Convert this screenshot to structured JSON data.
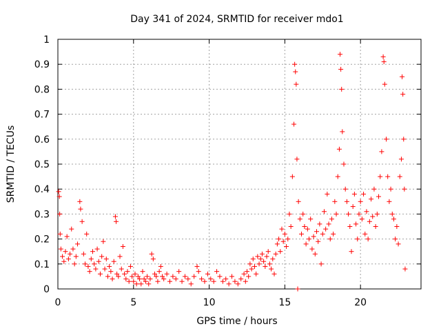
{
  "chart_data": {
    "type": "scatter",
    "title": "Day 341 of 2024, SRMTID for receiver mdo1",
    "xlabel": "GPS time / hours",
    "ylabel": "SRMTID / TECUs",
    "xlim": [
      0,
      24
    ],
    "ylim": [
      0,
      1
    ],
    "xticks": [
      0,
      5,
      10,
      15,
      20
    ],
    "xtick_labels": [
      "0",
      "5",
      "10",
      "15",
      "20"
    ],
    "yticks": [
      0,
      0.1,
      0.2,
      0.3,
      0.4,
      0.5,
      0.6,
      0.7,
      0.8,
      0.9,
      1
    ],
    "ytick_labels": [
      "0",
      "0.1",
      "0.2",
      "0.3",
      "0.4",
      "0.5",
      "0.6",
      "0.7",
      "0.8",
      "0.9",
      "1"
    ],
    "grid": true,
    "marker": "+",
    "color": "#ff0000",
    "series": [
      {
        "name": "SRMTID",
        "points": [
          [
            0.05,
            0.39
          ],
          [
            0.1,
            0.37
          ],
          [
            0.12,
            0.3
          ],
          [
            0.15,
            0.22
          ],
          [
            0.2,
            0.16
          ],
          [
            0.3,
            0.13
          ],
          [
            0.4,
            0.11
          ],
          [
            0.5,
            0.15
          ],
          [
            0.6,
            0.21
          ],
          [
            0.7,
            0.12
          ],
          [
            0.8,
            0.14
          ],
          [
            0.9,
            0.24
          ],
          [
            1.0,
            0.16
          ],
          [
            1.1,
            0.1
          ],
          [
            1.2,
            0.13
          ],
          [
            1.3,
            0.18
          ],
          [
            1.45,
            0.35
          ],
          [
            1.5,
            0.32
          ],
          [
            1.6,
            0.27
          ],
          [
            1.7,
            0.14
          ],
          [
            1.8,
            0.1
          ],
          [
            1.9,
            0.22
          ],
          [
            2.0,
            0.09
          ],
          [
            2.1,
            0.07
          ],
          [
            2.2,
            0.12
          ],
          [
            2.3,
            0.15
          ],
          [
            2.4,
            0.1
          ],
          [
            2.5,
            0.08
          ],
          [
            2.6,
            0.16
          ],
          [
            2.7,
            0.11
          ],
          [
            2.8,
            0.06
          ],
          [
            2.9,
            0.13
          ],
          [
            3.0,
            0.19
          ],
          [
            3.1,
            0.08
          ],
          [
            3.2,
            0.12
          ],
          [
            3.3,
            0.05
          ],
          [
            3.4,
            0.09
          ],
          [
            3.5,
            0.07
          ],
          [
            3.6,
            0.04
          ],
          [
            3.7,
            0.11
          ],
          [
            3.8,
            0.29
          ],
          [
            3.85,
            0.27
          ],
          [
            3.9,
            0.06
          ],
          [
            4.0,
            0.05
          ],
          [
            4.1,
            0.13
          ],
          [
            4.2,
            0.08
          ],
          [
            4.3,
            0.17
          ],
          [
            4.4,
            0.06
          ],
          [
            4.5,
            0.04
          ],
          [
            4.6,
            0.07
          ],
          [
            4.7,
            0.03
          ],
          [
            4.8,
            0.09
          ],
          [
            4.9,
            0.05
          ],
          [
            5.0,
            0.03
          ],
          [
            5.1,
            0.06
          ],
          [
            5.2,
            0.02
          ],
          [
            5.3,
            0.05
          ],
          [
            5.4,
            0.04
          ],
          [
            5.5,
            0.02
          ],
          [
            5.6,
            0.07
          ],
          [
            5.7,
            0.04
          ],
          [
            5.8,
            0.03
          ],
          [
            5.9,
            0.05
          ],
          [
            6.0,
            0.02
          ],
          [
            6.1,
            0.04
          ],
          [
            6.2,
            0.14
          ],
          [
            6.3,
            0.12
          ],
          [
            6.4,
            0.06
          ],
          [
            6.5,
            0.05
          ],
          [
            6.6,
            0.03
          ],
          [
            6.7,
            0.07
          ],
          [
            6.8,
            0.09
          ],
          [
            6.9,
            0.05
          ],
          [
            7.0,
            0.04
          ],
          [
            7.2,
            0.06
          ],
          [
            7.4,
            0.03
          ],
          [
            7.6,
            0.05
          ],
          [
            7.8,
            0.04
          ],
          [
            8.0,
            0.07
          ],
          [
            8.2,
            0.03
          ],
          [
            8.4,
            0.05
          ],
          [
            8.6,
            0.04
          ],
          [
            8.8,
            0.02
          ],
          [
            9.0,
            0.05
          ],
          [
            9.2,
            0.09
          ],
          [
            9.3,
            0.07
          ],
          [
            9.5,
            0.04
          ],
          [
            9.7,
            0.03
          ],
          [
            9.9,
            0.06
          ],
          [
            10.1,
            0.04
          ],
          [
            10.3,
            0.03
          ],
          [
            10.5,
            0.07
          ],
          [
            10.7,
            0.05
          ],
          [
            10.9,
            0.03
          ],
          [
            11.1,
            0.04
          ],
          [
            11.3,
            0.02
          ],
          [
            11.5,
            0.05
          ],
          [
            11.7,
            0.03
          ],
          [
            11.9,
            0.02
          ],
          [
            12.1,
            0.04
          ],
          [
            12.3,
            0.06
          ],
          [
            12.4,
            0.03
          ],
          [
            12.5,
            0.07
          ],
          [
            12.6,
            0.05
          ],
          [
            12.7,
            0.1
          ],
          [
            12.8,
            0.08
          ],
          [
            12.9,
            0.12
          ],
          [
            13.0,
            0.09
          ],
          [
            13.1,
            0.06
          ],
          [
            13.2,
            0.13
          ],
          [
            13.3,
            0.1
          ],
          [
            13.4,
            0.12
          ],
          [
            13.5,
            0.14
          ],
          [
            13.6,
            0.11
          ],
          [
            13.7,
            0.09
          ],
          [
            13.8,
            0.13
          ],
          [
            13.9,
            0.15
          ],
          [
            14.0,
            0.1
          ],
          [
            14.1,
            0.08
          ],
          [
            14.2,
            0.12
          ],
          [
            14.3,
            0.06
          ],
          [
            14.4,
            0.14
          ],
          [
            14.5,
            0.18
          ],
          [
            14.6,
            0.2
          ],
          [
            14.7,
            0.15
          ],
          [
            14.8,
            0.24
          ],
          [
            14.9,
            0.19
          ],
          [
            15.0,
            0.22
          ],
          [
            15.1,
            0.17
          ],
          [
            15.2,
            0.2
          ],
          [
            15.3,
            0.3
          ],
          [
            15.4,
            0.25
          ],
          [
            15.5,
            0.45
          ],
          [
            15.6,
            0.66
          ],
          [
            15.65,
            0.9
          ],
          [
            15.7,
            0.87
          ],
          [
            15.75,
            0.82
          ],
          [
            15.8,
            0.52
          ],
          [
            15.85,
            0.0
          ],
          [
            15.9,
            0.35
          ],
          [
            16.0,
            0.28
          ],
          [
            16.1,
            0.22
          ],
          [
            16.2,
            0.3
          ],
          [
            16.3,
            0.25
          ],
          [
            16.4,
            0.18
          ],
          [
            16.5,
            0.24
          ],
          [
            16.6,
            0.2
          ],
          [
            16.7,
            0.28
          ],
          [
            16.8,
            0.16
          ],
          [
            16.9,
            0.21
          ],
          [
            17.0,
            0.14
          ],
          [
            17.1,
            0.23
          ],
          [
            17.2,
            0.19
          ],
          [
            17.3,
            0.26
          ],
          [
            17.4,
            0.1
          ],
          [
            17.5,
            0.22
          ],
          [
            17.6,
            0.31
          ],
          [
            17.7,
            0.24
          ],
          [
            17.8,
            0.38
          ],
          [
            17.9,
            0.26
          ],
          [
            18.0,
            0.2
          ],
          [
            18.1,
            0.28
          ],
          [
            18.2,
            0.22
          ],
          [
            18.3,
            0.35
          ],
          [
            18.4,
            0.3
          ],
          [
            18.5,
            0.45
          ],
          [
            18.6,
            0.56
          ],
          [
            18.65,
            0.94
          ],
          [
            18.7,
            0.88
          ],
          [
            18.75,
            0.8
          ],
          [
            18.8,
            0.63
          ],
          [
            18.9,
            0.5
          ],
          [
            19.0,
            0.4
          ],
          [
            19.1,
            0.35
          ],
          [
            19.2,
            0.3
          ],
          [
            19.3,
            0.25
          ],
          [
            19.4,
            0.15
          ],
          [
            19.5,
            0.33
          ],
          [
            19.6,
            0.38
          ],
          [
            19.7,
            0.26
          ],
          [
            19.8,
            0.2
          ],
          [
            19.9,
            0.3
          ],
          [
            20.0,
            0.35
          ],
          [
            20.1,
            0.28
          ],
          [
            20.2,
            0.38
          ],
          [
            20.3,
            0.22
          ],
          [
            20.4,
            0.31
          ],
          [
            20.5,
            0.2
          ],
          [
            20.6,
            0.27
          ],
          [
            20.7,
            0.36
          ],
          [
            20.8,
            0.29
          ],
          [
            20.9,
            0.4
          ],
          [
            21.0,
            0.25
          ],
          [
            21.1,
            0.3
          ],
          [
            21.2,
            0.37
          ],
          [
            21.3,
            0.45
          ],
          [
            21.4,
            0.55
          ],
          [
            21.5,
            0.93
          ],
          [
            21.55,
            0.91
          ],
          [
            21.6,
            0.82
          ],
          [
            21.7,
            0.6
          ],
          [
            21.8,
            0.45
          ],
          [
            21.9,
            0.35
          ],
          [
            22.0,
            0.4
          ],
          [
            22.1,
            0.3
          ],
          [
            22.2,
            0.28
          ],
          [
            22.3,
            0.2
          ],
          [
            22.4,
            0.25
          ],
          [
            22.5,
            0.18
          ],
          [
            22.6,
            0.45
          ],
          [
            22.7,
            0.52
          ],
          [
            22.75,
            0.85
          ],
          [
            22.8,
            0.78
          ],
          [
            22.85,
            0.6
          ],
          [
            22.9,
            0.4
          ],
          [
            22.95,
            0.08
          ]
        ]
      }
    ]
  }
}
